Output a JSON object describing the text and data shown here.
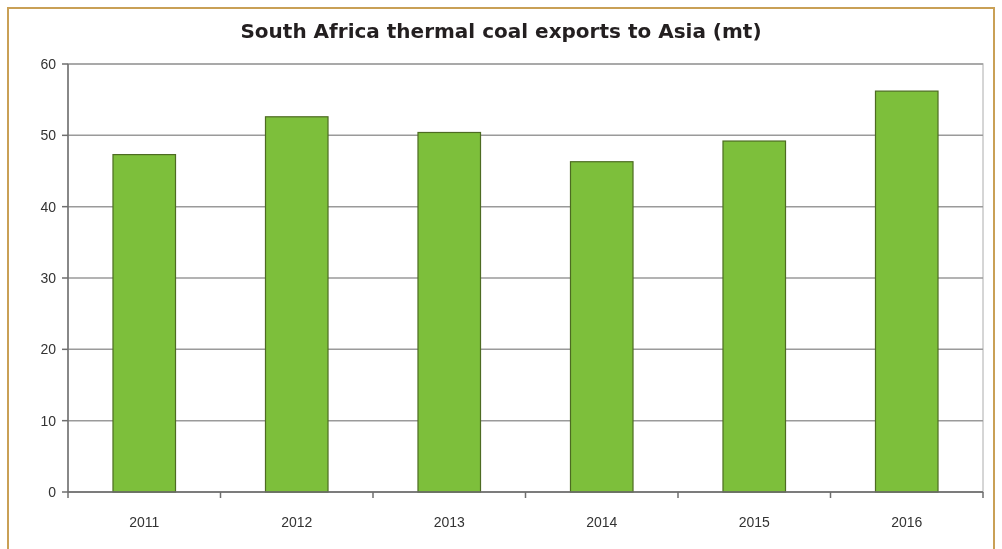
{
  "chart_data": {
    "type": "bar",
    "title": "South Africa thermal coal exports to Asia (mt)",
    "categories": [
      "2011",
      "2012",
      "2013",
      "2014",
      "2015",
      "2016"
    ],
    "values": [
      47.3,
      52.6,
      50.4,
      46.3,
      49.2,
      56.2
    ],
    "color": "#7dbf3b",
    "ylim": [
      0,
      60
    ],
    "yticks": [
      0,
      10,
      20,
      30,
      40,
      50,
      60
    ],
    "grid": "y"
  }
}
